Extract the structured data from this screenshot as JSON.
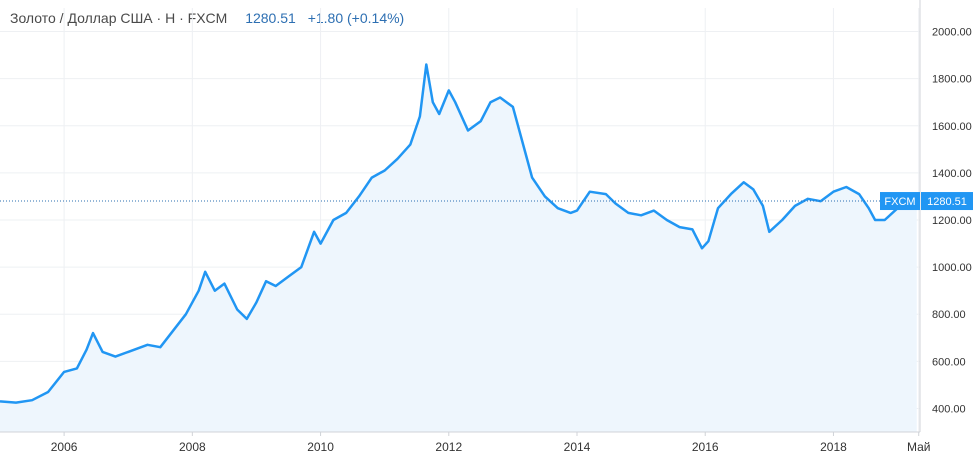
{
  "legend": {
    "symbol": "Золото / Доллар США · Н · FXCM",
    "price": "1280.51",
    "change": "+1.80 (+0.14%)"
  },
  "badges": {
    "source": "FXCM",
    "price": "1280.51"
  },
  "colors": {
    "line": "#2196f3",
    "fill": "#eef6fd",
    "badge": "#2196f3",
    "grid": "#eef0f3",
    "axis": "#d0d3d8"
  },
  "chart_data": {
    "type": "line",
    "title": "",
    "xlabel": "",
    "ylabel": "",
    "ylim": [
      300,
      2100
    ],
    "xlim": [
      2005.0,
      2019.35
    ],
    "y_ticks": [
      "400.00",
      "600.00",
      "800.00",
      "1000.00",
      "1200.00",
      "1400.00",
      "1600.00",
      "1800.00",
      "2000.00"
    ],
    "x_ticks": [
      {
        "x": 2006,
        "label": "2006"
      },
      {
        "x": 2008,
        "label": "2008"
      },
      {
        "x": 2010,
        "label": "2010"
      },
      {
        "x": 2012,
        "label": "2012"
      },
      {
        "x": 2014,
        "label": "2014"
      },
      {
        "x": 2016,
        "label": "2016"
      },
      {
        "x": 2018,
        "label": "2018"
      },
      {
        "x": 2019.33,
        "label": "Май"
      }
    ],
    "last_value": 1280.51,
    "grid": true,
    "series": [
      {
        "x": [
          2005.0,
          2005.25,
          2005.5,
          2005.75,
          2006.0,
          2006.2,
          2006.35,
          2006.45,
          2006.6,
          2006.8,
          2007.0,
          2007.3,
          2007.5,
          2007.7,
          2007.9,
          2008.1,
          2008.2,
          2008.35,
          2008.5,
          2008.7,
          2008.85,
          2009.0,
          2009.15,
          2009.3,
          2009.5,
          2009.7,
          2009.9,
          2010.0,
          2010.2,
          2010.4,
          2010.6,
          2010.8,
          2011.0,
          2011.2,
          2011.4,
          2011.55,
          2011.65,
          2011.75,
          2011.85,
          2012.0,
          2012.1,
          2012.3,
          2012.5,
          2012.65,
          2012.8,
          2013.0,
          2013.2,
          2013.3,
          2013.5,
          2013.7,
          2013.9,
          2014.0,
          2014.2,
          2014.45,
          2014.6,
          2014.8,
          2015.0,
          2015.2,
          2015.4,
          2015.6,
          2015.8,
          2015.95,
          2016.05,
          2016.2,
          2016.4,
          2016.6,
          2016.75,
          2016.9,
          2017.0,
          2017.2,
          2017.4,
          2017.6,
          2017.8,
          2018.0,
          2018.2,
          2018.4,
          2018.55,
          2018.65,
          2018.8,
          2019.0,
          2019.1,
          2019.2,
          2019.3
        ],
        "y": [
          430,
          425,
          435,
          470,
          555,
          570,
          650,
          720,
          640,
          620,
          640,
          670,
          660,
          730,
          800,
          900,
          980,
          900,
          930,
          820,
          780,
          850,
          940,
          920,
          960,
          1000,
          1150,
          1100,
          1200,
          1230,
          1300,
          1380,
          1410,
          1460,
          1520,
          1640,
          1860,
          1700,
          1650,
          1750,
          1700,
          1580,
          1620,
          1700,
          1720,
          1680,
          1480,
          1380,
          1300,
          1250,
          1230,
          1240,
          1320,
          1310,
          1270,
          1230,
          1220,
          1240,
          1200,
          1170,
          1160,
          1080,
          1110,
          1250,
          1310,
          1360,
          1330,
          1260,
          1150,
          1200,
          1260,
          1290,
          1280,
          1320,
          1340,
          1310,
          1250,
          1200,
          1200,
          1250,
          1260,
          1280,
          1280
        ]
      }
    ]
  }
}
